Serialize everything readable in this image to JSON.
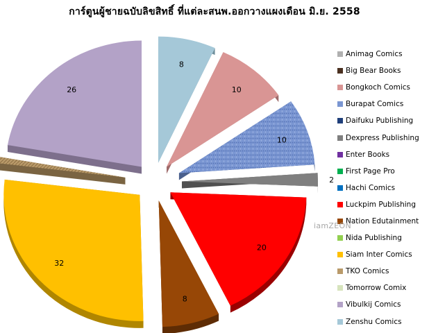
{
  "chart_data": {
    "type": "pie",
    "title": "การ์ตูนผู้ชายฉบับลิขสิทธิ์ ที่แต่ละสนพ.ออกวางแผงเดือน มิ.ย. 2558",
    "categories": [
      "Animag Comics",
      "Big Bear Books",
      "Bongkoch Comics",
      "Burapat Comics",
      "Daifuku Publishing",
      "Dexpress Publishing",
      "Enter Books",
      "First Page Pro",
      "Hachi Comics",
      "Luckpim Publishing",
      "Nation Edutainment",
      "Nida Publishing",
      "Siam Inter Comics",
      "TKO Comics",
      "Tomorrow Comix",
      "Vibulkij Comics",
      "Zenshu Comics"
    ],
    "values": [
      0,
      0,
      10,
      10,
      0,
      2,
      0,
      0,
      0,
      20,
      8,
      0,
      32,
      1,
      0,
      26,
      8
    ],
    "data_labels": [
      "",
      "",
      "10",
      "10",
      "",
      "2",
      "",
      "",
      "",
      "20",
      "8",
      "",
      "32",
      "1",
      "",
      "26",
      "8"
    ],
    "colors": [
      "#b0b0b0",
      "#4a3020",
      "#d99594",
      "#7a96d2",
      "#1f3f7a",
      "#7f7f7f",
      "#7030a0",
      "#00b050",
      "#0070c0",
      "#ff0000",
      "#974706",
      "#92d050",
      "#ffc000",
      "#b99a6a",
      "#d7e4bd",
      "#b3a2c7",
      "#a5c8d8"
    ],
    "side_colors": [
      "#707070",
      "#2a1a10",
      "#9e6a6a",
      "#4a5f8c",
      "#112450",
      "#505050",
      "#4a2070",
      "#007a3a",
      "#004d88",
      "#9a0000",
      "#5e2c04",
      "#5e8a30",
      "#b08600",
      "#7a6442",
      "#9aa682",
      "#7d6f8c",
      "#6f8f9c"
    ],
    "legend_placement": "right"
  },
  "watermark": "iamZEON"
}
